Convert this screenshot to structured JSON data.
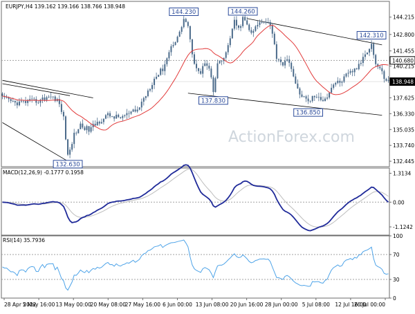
{
  "watermark": "ActionForex.com",
  "colors": {
    "background": "#ffffff",
    "border": "#6b6b6b",
    "candle": "#4a6a8a",
    "ma": "#e23b3b",
    "trendline": "#000000",
    "macd": "#1f2a99",
    "signal": "#bdbdbd",
    "rsi": "#4da3e8",
    "dotted": "#a0a0a0",
    "label_border": "#2a4a9a",
    "label_bg": "#ffffff",
    "price_box_bg": "#000000",
    "price_box_text": "#ffffff",
    "watermark": "#cfd6dd"
  },
  "chart_data": [
    {
      "type": "candlestick",
      "title": "EURJPY,H4  139.162 139.166 138.766 138.948",
      "y_ticks": [
        "144.215",
        "142.800",
        "141.455",
        "140.215",
        "137.625",
        "136.330",
        "135.035",
        "133.740",
        "132.445"
      ],
      "ylim": [
        132.0,
        145.5
      ],
      "price_markers": [
        {
          "label": "140.680",
          "value": 140.68,
          "dotted": true
        },
        {
          "label": "138.948",
          "value": 138.948,
          "dotted": false,
          "filled": true
        }
      ],
      "annotations": [
        {
          "text": "144.230",
          "bar": 86,
          "value": 144.23,
          "pos": "above"
        },
        {
          "text": "144.260",
          "bar": 114,
          "value": 144.26,
          "pos": "above"
        },
        {
          "text": "137.830",
          "bar": 100,
          "value": 137.83,
          "pos": "below"
        },
        {
          "text": "136.850",
          "bar": 145,
          "value": 136.85,
          "pos": "below"
        },
        {
          "text": "132.630",
          "bar": 31,
          "value": 132.63,
          "pos": "below"
        },
        {
          "text": "142.310",
          "bar": 175,
          "value": 142.31,
          "pos": "above"
        }
      ],
      "trendlines": [
        {
          "points": [
            [
              0,
              139.05
            ],
            [
              43,
              137.62
            ]
          ]
        },
        {
          "points": [
            [
              0,
              135.6
            ],
            [
              31,
              132.45
            ]
          ]
        },
        {
          "points": [
            [
              0,
              138.78
            ],
            [
              32,
              137.8
            ]
          ]
        },
        {
          "points": [
            [
              116,
              144.1
            ],
            [
              180,
              141.95
            ]
          ]
        },
        {
          "points": [
            [
              88,
              138.0
            ],
            [
              180,
              136.2
            ]
          ]
        }
      ],
      "anchors": [
        [
          0,
          137.6
        ],
        [
          6,
          137.2
        ],
        [
          12,
          137.3
        ],
        [
          18,
          137.4
        ],
        [
          22,
          137.8
        ],
        [
          26,
          137.5
        ],
        [
          29,
          136.0
        ],
        [
          31,
          132.8
        ],
        [
          34,
          134.6
        ],
        [
          37,
          135.4
        ],
        [
          41,
          135.0
        ],
        [
          45,
          135.6
        ],
        [
          50,
          136.2
        ],
        [
          55,
          136.0
        ],
        [
          60,
          136.3
        ],
        [
          64,
          136.6
        ],
        [
          68,
          137.9
        ],
        [
          72,
          139.2
        ],
        [
          76,
          140.0
        ],
        [
          80,
          141.8
        ],
        [
          84,
          142.9
        ],
        [
          86,
          144.1
        ],
        [
          88,
          143.5
        ],
        [
          90,
          141.0
        ],
        [
          92,
          140.2
        ],
        [
          94,
          139.6
        ],
        [
          96,
          140.6
        ],
        [
          98,
          140.2
        ],
        [
          100,
          138.1
        ],
        [
          102,
          140.3
        ],
        [
          104,
          140.6
        ],
        [
          106,
          141.2
        ],
        [
          108,
          142.6
        ],
        [
          110,
          143.8
        ],
        [
          112,
          143.2
        ],
        [
          114,
          144.1
        ],
        [
          116,
          143.6
        ],
        [
          118,
          142.8
        ],
        [
          121,
          143.6
        ],
        [
          124,
          144.0
        ],
        [
          127,
          143.7
        ],
        [
          130,
          141.0
        ],
        [
          133,
          140.4
        ],
        [
          136,
          140.7
        ],
        [
          139,
          138.6
        ],
        [
          142,
          137.8
        ],
        [
          145,
          137.3
        ],
        [
          148,
          137.8
        ],
        [
          151,
          137.4
        ],
        [
          154,
          137.8
        ],
        [
          157,
          138.8
        ],
        [
          160,
          138.9
        ],
        [
          163,
          139.4
        ],
        [
          166,
          139.8
        ],
        [
          169,
          140.2
        ],
        [
          172,
          141.3
        ],
        [
          175,
          142.0
        ],
        [
          177,
          140.4
        ],
        [
          179,
          140.0
        ],
        [
          181,
          139.3
        ],
        [
          183,
          138.95
        ]
      ]
    },
    {
      "type": "line",
      "title": "MACD(12,26,9) -0.1777 0.1958",
      "y_ticks": [
        "1.3134",
        "0.00",
        "-1.1242"
      ],
      "ylim": [
        -1.5,
        1.55
      ],
      "series": [
        {
          "name": "MACD"
        },
        {
          "name": "Signal"
        }
      ]
    },
    {
      "type": "line",
      "title": "RSI(14) 35.7936",
      "y_ticks": [
        "100",
        "70",
        "30",
        "0"
      ],
      "ylim": [
        0,
        100
      ],
      "levels": [
        70,
        30
      ],
      "series": [
        {
          "name": "RSI"
        }
      ]
    }
  ],
  "x_ticks": [
    "28 Apr 2022",
    "5 May 16:00",
    "13 May 00:00",
    "20 May 08:00",
    "27 May 16:00",
    "6 Jun 00:00",
    "13 Jun 08:00",
    "20 Jun 16:00",
    "28 Jun 00:00",
    "5 Jul 08:00",
    "12 Jul 16:00",
    "20 Jul 00:00"
  ]
}
